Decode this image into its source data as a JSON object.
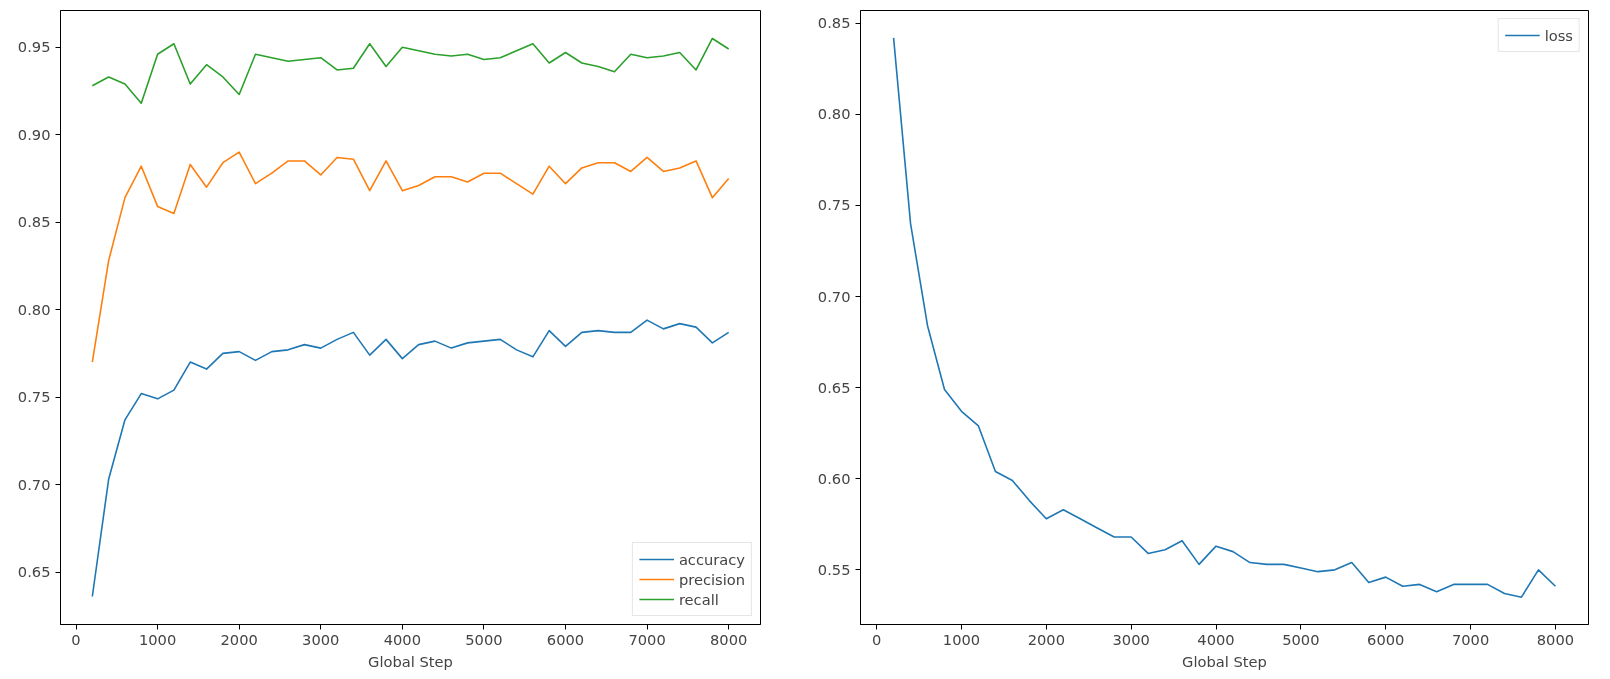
{
  "chart_data": [
    {
      "type": "line",
      "xlabel": "Global Step",
      "x": [
        200,
        400,
        600,
        800,
        1000,
        1200,
        1400,
        1600,
        1800,
        2000,
        2200,
        2400,
        2600,
        2800,
        3000,
        3200,
        3400,
        3600,
        3800,
        4000,
        4200,
        4400,
        4600,
        4800,
        5000,
        5200,
        5400,
        5600,
        5800,
        6000,
        6200,
        6400,
        6600,
        6800,
        7000,
        7200,
        7400,
        7600,
        7800,
        8000
      ],
      "series": [
        {
          "name": "accuracy",
          "color": "#1f77b4",
          "values": [
            0.636,
            0.703,
            0.737,
            0.752,
            0.749,
            0.754,
            0.77,
            0.766,
            0.775,
            0.776,
            0.771,
            0.776,
            0.777,
            0.78,
            0.778,
            0.783,
            0.787,
            0.774,
            0.783,
            0.772,
            0.78,
            0.782,
            0.778,
            0.781,
            0.782,
            0.783,
            0.777,
            0.773,
            0.788,
            0.779,
            0.787,
            0.788,
            0.787,
            0.787,
            0.794,
            0.789,
            0.792,
            0.79,
            0.781,
            0.787
          ]
        },
        {
          "name": "precision",
          "color": "#ff7f0e",
          "values": [
            0.77,
            0.828,
            0.864,
            0.882,
            0.859,
            0.855,
            0.883,
            0.87,
            0.884,
            0.89,
            0.872,
            0.878,
            0.885,
            0.885,
            0.877,
            0.887,
            0.886,
            0.868,
            0.885,
            0.868,
            0.871,
            0.876,
            0.876,
            0.873,
            0.878,
            0.878,
            0.872,
            0.866,
            0.882,
            0.872,
            0.881,
            0.884,
            0.884,
            0.879,
            0.887,
            0.879,
            0.881,
            0.885,
            0.864,
            0.875
          ]
        },
        {
          "name": "recall",
          "color": "#2ca02c",
          "values": [
            0.928,
            0.933,
            0.929,
            0.918,
            0.946,
            0.952,
            0.929,
            0.94,
            0.933,
            0.923,
            0.946,
            0.944,
            0.942,
            0.943,
            0.944,
            0.937,
            0.938,
            0.952,
            0.939,
            0.95,
            0.948,
            0.946,
            0.945,
            0.946,
            0.943,
            0.944,
            0.948,
            0.952,
            0.941,
            0.947,
            0.941,
            0.939,
            0.936,
            0.946,
            0.944,
            0.945,
            0.947,
            0.937,
            0.955,
            0.949
          ]
        }
      ],
      "xlim": [
        -190,
        8390
      ],
      "xticks": [
        0,
        1000,
        2000,
        3000,
        4000,
        5000,
        6000,
        7000,
        8000
      ],
      "ylim": [
        0.62,
        0.971
      ],
      "yticks": [
        {
          "value": 0.65,
          "label": "0.65"
        },
        {
          "value": 0.7,
          "label": "0.70"
        },
        {
          "value": 0.75,
          "label": "0.75"
        },
        {
          "value": 0.8,
          "label": "0.80"
        },
        {
          "value": 0.85,
          "label": "0.85"
        },
        {
          "value": 0.9,
          "label": "0.90"
        },
        {
          "value": 0.95,
          "label": "0.95"
        }
      ],
      "grid": false,
      "legend": "bottom right",
      "marker": "none",
      "line_style": "solid"
    },
    {
      "type": "line",
      "xlabel": "Global Step",
      "x": [
        200,
        400,
        600,
        800,
        1000,
        1200,
        1400,
        1600,
        1800,
        2000,
        2200,
        2400,
        2600,
        2800,
        3000,
        3200,
        3400,
        3600,
        3800,
        4000,
        4200,
        4400,
        4600,
        4800,
        5000,
        5200,
        5400,
        5600,
        5800,
        6000,
        6200,
        6400,
        6600,
        6800,
        7000,
        7200,
        7400,
        7600,
        7800,
        8000
      ],
      "series": [
        {
          "name": "loss",
          "color": "#1f77b4",
          "values": [
            0.842,
            0.74,
            0.684,
            0.649,
            0.637,
            0.629,
            0.604,
            0.599,
            0.588,
            0.578,
            0.583,
            0.578,
            0.573,
            0.568,
            0.568,
            0.559,
            0.561,
            0.566,
            0.553,
            0.563,
            0.56,
            0.554,
            0.553,
            0.553,
            0.551,
            0.549,
            0.55,
            0.554,
            0.543,
            0.546,
            0.541,
            0.542,
            0.538,
            0.542,
            0.542,
            0.542,
            0.537,
            0.535,
            0.55,
            0.541
          ]
        }
      ],
      "xlim": [
        -190,
        8390
      ],
      "xticks": [
        0,
        1000,
        2000,
        3000,
        4000,
        5000,
        6000,
        7000,
        8000
      ],
      "ylim": [
        0.52,
        0.857
      ],
      "yticks": [
        {
          "value": 0.55,
          "label": "0.55"
        },
        {
          "value": 0.6,
          "label": "0.60"
        },
        {
          "value": 0.65,
          "label": "0.65"
        },
        {
          "value": 0.7,
          "label": "0.70"
        },
        {
          "value": 0.75,
          "label": "0.75"
        },
        {
          "value": 0.8,
          "label": "0.80"
        },
        {
          "value": 0.85,
          "label": "0.85"
        }
      ],
      "grid": false,
      "legend": "top right",
      "marker": "none",
      "line_style": "solid"
    }
  ]
}
